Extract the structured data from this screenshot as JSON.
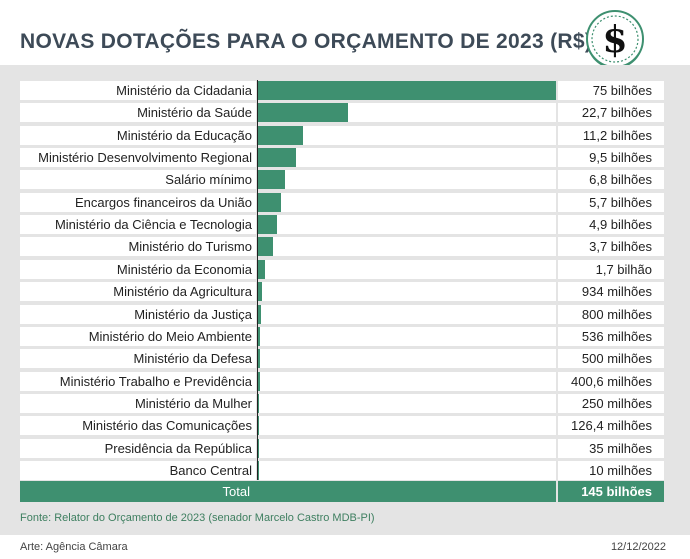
{
  "title": "NOVAS DOTAÇÕES PARA O ORÇAMENTO DE 2023 (R$)",
  "logo_icon": "dollar-sign-icon",
  "colors": {
    "bar": "#3e9070",
    "title": "#3d4a57",
    "panel": "#e4e4e4"
  },
  "chart_data": {
    "type": "bar",
    "orientation": "horizontal",
    "unit": "R$ bilhões",
    "categories": [
      "Ministério da Cidadania",
      "Ministério da Saúde",
      "Ministério da Educação",
      "Ministério Desenvolvimento Regional",
      "Salário mínimo",
      "Encargos financeiros da União",
      "Ministério da Ciência e Tecnologia",
      "Ministério do Turismo",
      "Ministério da Economia",
      "Ministério da Agricultura",
      "Ministério da Justiça",
      "Ministério do Meio Ambiente",
      "Ministério da Defesa",
      "Ministério Trabalho e Previdência",
      "Ministério da Mulher",
      "Ministério das Comunicações",
      "Presidência da República",
      "Banco Central"
    ],
    "values": [
      75,
      22.7,
      11.2,
      9.5,
      6.8,
      5.7,
      4.9,
      3.7,
      1.7,
      0.934,
      0.8,
      0.536,
      0.5,
      0.4006,
      0.25,
      0.1264,
      0.035,
      0.01
    ],
    "value_labels": [
      "75 bilhões",
      "22,7 bilhões",
      "11,2 bilhões",
      "9,5 bilhões",
      "6,8 bilhões",
      "5,7 bilhões",
      "4,9 bilhões",
      "3,7 bilhões",
      "1,7 bilhão",
      "934 milhões",
      "800 milhões",
      "536 milhões",
      "500 milhões",
      "400,6 milhões",
      "250 milhões",
      "126,4 milhões",
      "35 milhões",
      "10 milhões"
    ],
    "xlim": [
      0,
      75
    ],
    "total_label": "Total",
    "total_value": "145 bilhões"
  },
  "source": "Fonte: Relator do Orçamento de 2023 (senador Marcelo Castro MDB-PI)",
  "credit": "Arte: Agência Câmara",
  "date": "12/12/2022"
}
